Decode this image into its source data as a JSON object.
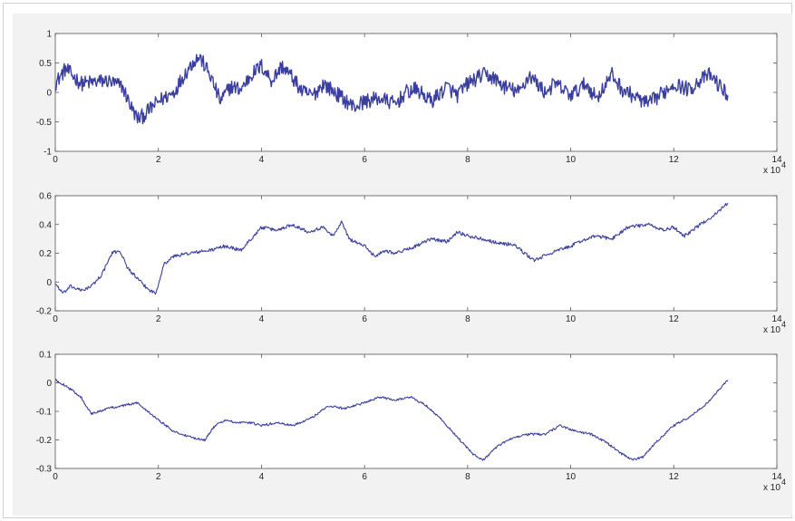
{
  "chart_data": [
    {
      "type": "line",
      "title": "",
      "xlabel": "",
      "ylabel": "",
      "x_multiplier_label": "x 10",
      "x_multiplier_exponent": "4",
      "xlim": [
        0,
        14
      ],
      "ylim": [
        -1,
        1
      ],
      "x_ticks": [
        0,
        2,
        4,
        6,
        8,
        10,
        12,
        14
      ],
      "y_ticks": [
        -1,
        -0.5,
        0,
        0.5,
        1
      ],
      "y_tick_labels": [
        "-1",
        "-0.5",
        "0",
        "0.5",
        "1"
      ],
      "grid": false,
      "color": "#3a3f9e",
      "noise_amplitude": 0.13,
      "x": [
        0,
        0.2,
        0.5,
        1.0,
        1.3,
        1.5,
        1.6,
        1.7,
        2.0,
        2.3,
        2.5,
        2.7,
        2.8,
        3.0,
        3.2,
        3.4,
        3.6,
        3.8,
        4.0,
        4.2,
        4.4,
        4.6,
        4.8,
        5.0,
        5.2,
        5.5,
        5.8,
        6.0,
        6.3,
        6.6,
        6.8,
        7.0,
        7.3,
        7.6,
        7.8,
        8.0,
        8.3,
        8.5,
        8.7,
        9.0,
        9.2,
        9.5,
        9.7,
        10.0,
        10.3,
        10.5,
        10.8,
        11.0,
        11.3,
        11.5,
        11.8,
        12.0,
        12.3,
        12.5,
        12.7,
        12.9,
        13.05
      ],
      "values": [
        0.15,
        0.4,
        0.15,
        0.2,
        0.1,
        -0.3,
        -0.45,
        -0.4,
        -0.15,
        0.0,
        0.3,
        0.55,
        0.6,
        0.3,
        -0.15,
        0.1,
        0.05,
        0.3,
        0.45,
        0.2,
        0.45,
        0.25,
        0.0,
        -0.05,
        0.15,
        -0.05,
        -0.25,
        -0.15,
        -0.1,
        -0.2,
        0.0,
        0.05,
        -0.15,
        0.1,
        -0.05,
        0.15,
        0.3,
        0.25,
        0.1,
        0.0,
        0.3,
        0.0,
        0.15,
        -0.05,
        0.15,
        -0.1,
        0.3,
        0.05,
        -0.1,
        -0.2,
        0.0,
        0.15,
        0.05,
        0.2,
        0.3,
        0.1,
        -0.05
      ]
    },
    {
      "type": "line",
      "title": "",
      "xlabel": "",
      "ylabel": "",
      "x_multiplier_label": "x 10",
      "x_multiplier_exponent": "4",
      "xlim": [
        0,
        14
      ],
      "ylim": [
        -0.2,
        0.6
      ],
      "x_ticks": [
        0,
        2,
        4,
        6,
        8,
        10,
        12,
        14
      ],
      "y_ticks": [
        -0.2,
        0,
        0.2,
        0.4,
        0.6
      ],
      "y_tick_labels": [
        "-0.2",
        "0",
        "0.2",
        "0.4",
        "0.6"
      ],
      "grid": false,
      "color": "#3a3f9e",
      "noise_amplitude": 0.012,
      "x": [
        0,
        0.15,
        0.3,
        0.5,
        0.7,
        0.9,
        1.1,
        1.25,
        1.4,
        1.6,
        1.8,
        1.95,
        2.1,
        2.3,
        2.6,
        3.0,
        3.3,
        3.6,
        3.8,
        4.0,
        4.3,
        4.6,
        4.9,
        5.2,
        5.4,
        5.55,
        5.7,
        6.0,
        6.2,
        6.4,
        6.6,
        7.0,
        7.3,
        7.6,
        7.8,
        8.0,
        8.3,
        8.6,
        8.9,
        9.1,
        9.3,
        9.6,
        10.0,
        10.3,
        10.5,
        10.8,
        11.1,
        11.5,
        11.8,
        12.0,
        12.2,
        12.4,
        12.6,
        12.8,
        13.05
      ],
      "values": [
        -0.01,
        -0.08,
        -0.03,
        -0.06,
        -0.03,
        0.05,
        0.2,
        0.22,
        0.1,
        0.02,
        -0.05,
        -0.08,
        0.12,
        0.18,
        0.2,
        0.22,
        0.25,
        0.22,
        0.3,
        0.38,
        0.36,
        0.4,
        0.35,
        0.38,
        0.32,
        0.42,
        0.3,
        0.25,
        0.18,
        0.22,
        0.2,
        0.25,
        0.3,
        0.28,
        0.35,
        0.32,
        0.3,
        0.27,
        0.26,
        0.2,
        0.15,
        0.2,
        0.25,
        0.3,
        0.32,
        0.3,
        0.38,
        0.4,
        0.36,
        0.38,
        0.32,
        0.37,
        0.42,
        0.47,
        0.55
      ]
    },
    {
      "type": "line",
      "title": "",
      "xlabel": "",
      "ylabel": "",
      "x_multiplier_label": "x 10",
      "x_multiplier_exponent": "4",
      "xlim": [
        0,
        14
      ],
      "ylim": [
        -0.3,
        0.1
      ],
      "x_ticks": [
        0,
        2,
        4,
        6,
        8,
        10,
        12,
        14
      ],
      "y_ticks": [
        -0.3,
        -0.2,
        -0.1,
        0,
        0.1
      ],
      "y_tick_labels": [
        "-0.3",
        "-0.2",
        "-0.1",
        "0",
        "0.1"
      ],
      "grid": false,
      "color": "#3a3f9e",
      "noise_amplitude": 0.004,
      "x": [
        0,
        0.2,
        0.5,
        0.7,
        1.0,
        1.3,
        1.6,
        1.8,
        2.0,
        2.3,
        2.6,
        2.9,
        3.1,
        3.3,
        3.5,
        3.8,
        4.0,
        4.3,
        4.6,
        5.0,
        5.3,
        5.6,
        6.0,
        6.3,
        6.6,
        6.9,
        7.2,
        7.5,
        7.8,
        8.1,
        8.3,
        8.6,
        8.9,
        9.2,
        9.5,
        9.8,
        10.1,
        10.4,
        10.7,
        11.0,
        11.2,
        11.4,
        11.7,
        12.0,
        12.3,
        12.6,
        12.85,
        13.05
      ],
      "values": [
        0.01,
        -0.01,
        -0.05,
        -0.11,
        -0.09,
        -0.08,
        -0.07,
        -0.1,
        -0.13,
        -0.17,
        -0.19,
        -0.2,
        -0.15,
        -0.13,
        -0.14,
        -0.14,
        -0.15,
        -0.14,
        -0.15,
        -0.12,
        -0.08,
        -0.09,
        -0.07,
        -0.05,
        -0.06,
        -0.05,
        -0.08,
        -0.13,
        -0.19,
        -0.25,
        -0.27,
        -0.22,
        -0.19,
        -0.18,
        -0.18,
        -0.15,
        -0.17,
        -0.18,
        -0.21,
        -0.25,
        -0.27,
        -0.26,
        -0.2,
        -0.15,
        -0.12,
        -0.08,
        -0.03,
        0.01
      ]
    }
  ]
}
